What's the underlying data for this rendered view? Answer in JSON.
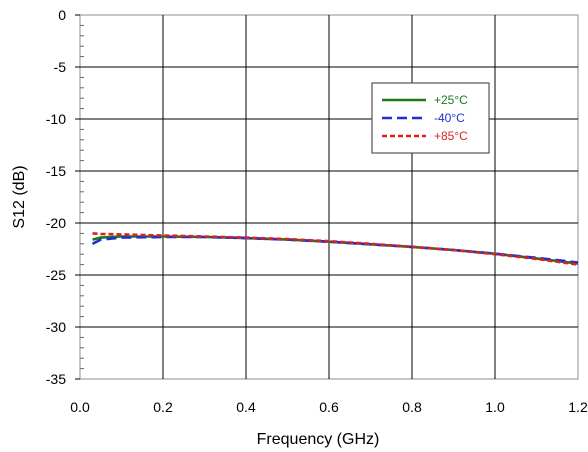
{
  "chart_data": {
    "type": "line",
    "title": "",
    "xlabel": "Frequency (GHz)",
    "ylabel": "S12 (dB)",
    "xlim": [
      0.0,
      1.2
    ],
    "ylim": [
      -35,
      0
    ],
    "xticks": [
      "0.0",
      "0.2",
      "0.4",
      "0.6",
      "0.8",
      "1.0",
      "1.2"
    ],
    "yticks": [
      "0",
      "-5",
      "-10",
      "-15",
      "-20",
      "-25",
      "-30",
      "-35"
    ],
    "grid": true,
    "legend_position": "top-right",
    "series": [
      {
        "name": "+25°C",
        "color": "#1a7a1a",
        "dash": "solid",
        "x": [
          0.03,
          0.05,
          0.1,
          0.2,
          0.3,
          0.4,
          0.5,
          0.6,
          0.7,
          0.8,
          0.9,
          1.0,
          1.1,
          1.2
        ],
        "y": [
          -21.6,
          -21.4,
          -21.3,
          -21.3,
          -21.35,
          -21.45,
          -21.6,
          -21.8,
          -22.05,
          -22.3,
          -22.6,
          -22.95,
          -23.4,
          -23.9
        ]
      },
      {
        "name": "-40°C",
        "color": "#1f2fd0",
        "dash": "dashed",
        "x": [
          0.03,
          0.05,
          0.1,
          0.2,
          0.3,
          0.4,
          0.5,
          0.6,
          0.7,
          0.8,
          0.9,
          1.0,
          1.1,
          1.2
        ],
        "y": [
          -22.0,
          -21.6,
          -21.4,
          -21.35,
          -21.35,
          -21.45,
          -21.6,
          -21.8,
          -22.05,
          -22.3,
          -22.6,
          -22.95,
          -23.35,
          -23.8
        ]
      },
      {
        "name": "+85°C",
        "color": "#e02020",
        "dash": "dotted",
        "x": [
          0.03,
          0.05,
          0.1,
          0.2,
          0.3,
          0.4,
          0.5,
          0.6,
          0.7,
          0.8,
          0.9,
          1.0,
          1.1,
          1.2
        ],
        "y": [
          -21.0,
          -21.05,
          -21.1,
          -21.2,
          -21.3,
          -21.4,
          -21.55,
          -21.75,
          -22.0,
          -22.3,
          -22.6,
          -23.0,
          -23.45,
          -24.0
        ]
      }
    ]
  }
}
